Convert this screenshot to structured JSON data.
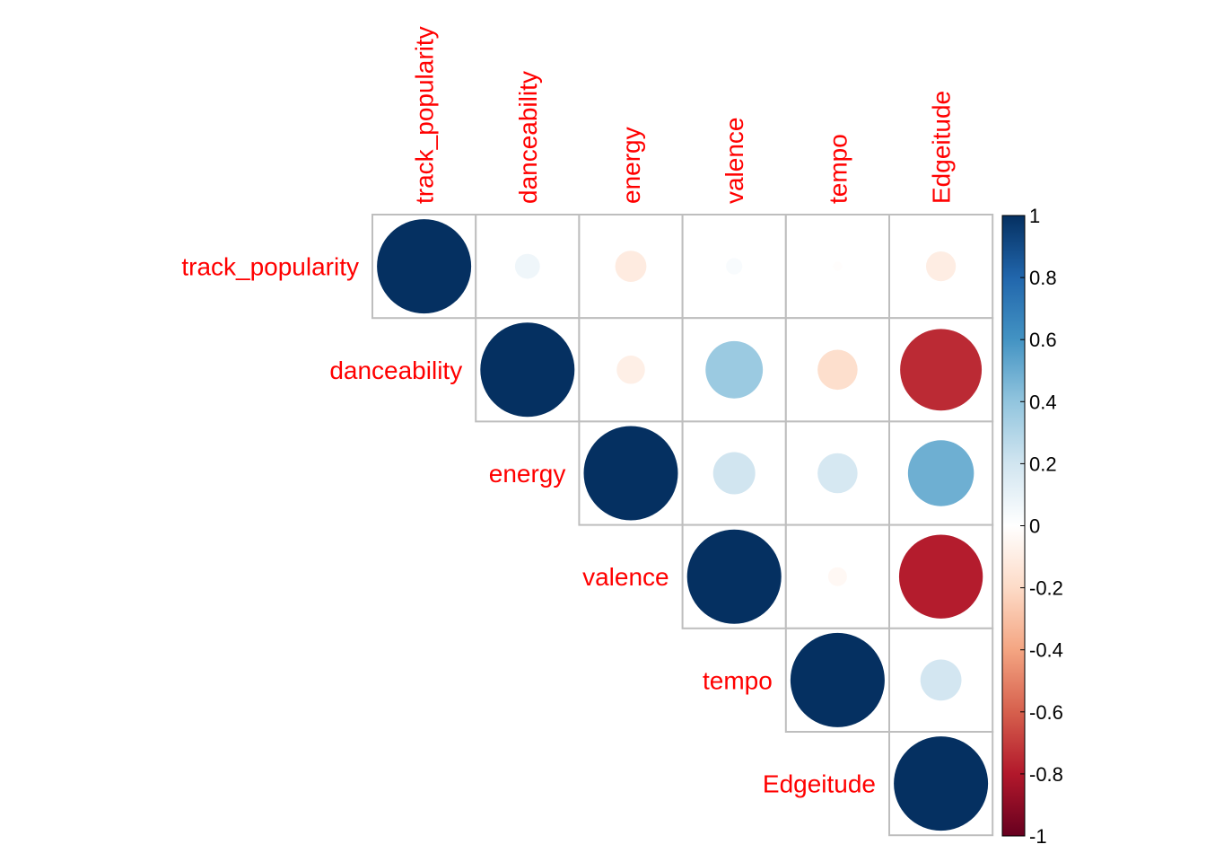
{
  "chart_data": {
    "type": "heatmap",
    "subtype": "correlation-circle-upper",
    "variables": [
      "track_popularity",
      "danceability",
      "energy",
      "valence",
      "tempo",
      "Edgeitude"
    ],
    "matrix": [
      [
        1.0,
        0.07,
        -0.11,
        0.03,
        -0.01,
        -0.1
      ],
      [
        0.07,
        1.0,
        -0.09,
        0.37,
        -0.18,
        -0.75
      ],
      [
        -0.11,
        -0.09,
        1.0,
        0.2,
        0.18,
        0.49
      ],
      [
        0.03,
        0.37,
        0.2,
        1.0,
        -0.04,
        -0.79
      ],
      [
        -0.01,
        -0.18,
        0.18,
        -0.04,
        1.0,
        0.19
      ],
      [
        -0.1,
        -0.75,
        0.49,
        -0.79,
        0.19,
        1.0
      ]
    ],
    "colorbar": {
      "range": [
        -1,
        1
      ],
      "ticks": [
        "1",
        "0.8",
        "0.6",
        "0.4",
        "0.2",
        "0",
        "-0.2",
        "-0.4",
        "-0.6",
        "-0.8",
        "-1"
      ],
      "tick_values": [
        1,
        0.8,
        0.6,
        0.4,
        0.2,
        0,
        -0.2,
        -0.4,
        -0.6,
        -0.8,
        -1
      ],
      "colors": [
        "#67001F",
        "#B2182B",
        "#D6604D",
        "#F4A582",
        "#FDDBC7",
        "#FFFFFF",
        "#D1E5F0",
        "#92C5DE",
        "#4393C3",
        "#2166AC",
        "#053061"
      ]
    },
    "label_color": "#FF0000",
    "grid_color": "#BEBEBE"
  }
}
